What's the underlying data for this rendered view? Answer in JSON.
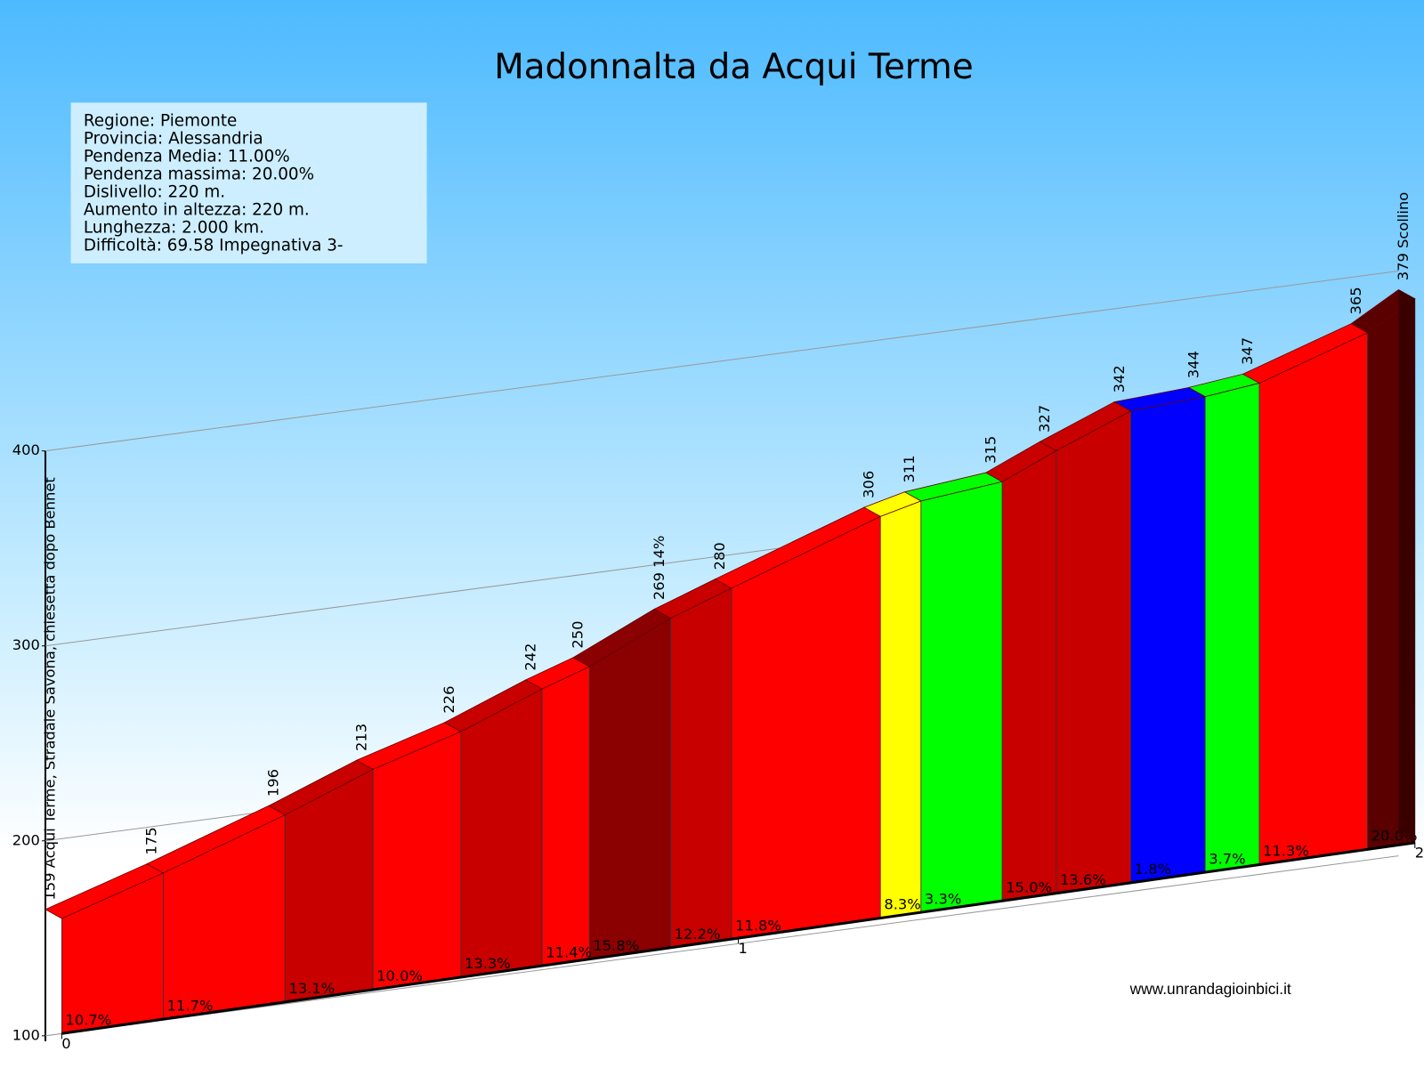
{
  "chart_data": {
    "type": "profile",
    "title": "Madonnalta da Acqui Terme",
    "info": [
      "Regione: Piemonte",
      "Provincia: Alessandria",
      "Pendenza Media: 11.00%",
      "Pendenza massima: 20.00%",
      "Dislivello:   220 m.",
      "Aumento in altezza:   220 m.",
      "Lunghezza:  2.000 km.",
      "Difficoltà: 69.58 Impegnativa 3-"
    ],
    "source": "www.unrandagioinbici.it",
    "x": [
      0,
      0.15,
      0.33,
      0.46,
      0.59,
      0.71,
      0.78,
      0.9,
      0.99,
      1.21,
      1.27,
      1.39,
      1.47,
      1.58,
      1.69,
      1.77,
      1.93,
      2.0
    ],
    "altitude": {
      "values": [
        159,
        175,
        196,
        213,
        226,
        242,
        250,
        269,
        280,
        306,
        311,
        315,
        327,
        342,
        344,
        347,
        365,
        379
      ],
      "value_labels": [
        "159 Acqui Terme, Stradale Savona, chiesetta dopo Bennet",
        "175",
        "196",
        "213",
        "226",
        "242",
        "250",
        "269 14%",
        "280",
        "306",
        "311",
        "315",
        "327",
        "342",
        "344",
        "347",
        "365",
        "379 Scollino"
      ]
    },
    "gradient": {
      "values": [
        10.7,
        11.7,
        13.1,
        10.0,
        13.3,
        11.4,
        15.8,
        12.2,
        11.8,
        8.3,
        3.3,
        15.0,
        13.6,
        1.8,
        3.7,
        11.3,
        20.0
      ],
      "value_labels": [
        "10.7%",
        "11.7%",
        "13.1%",
        "10.0%",
        "13.3%",
        "11.4%",
        "15.8%",
        "12.2%",
        "11.8%",
        "8.3%",
        "3.3%",
        "15.0%",
        "13.6%",
        "1.8%",
        "3.7%",
        "11.3%",
        "20.0%"
      ],
      "colors": [
        "#ff0000",
        "#ff0000",
        "#c80000",
        "#ff0000",
        "#c80000",
        "#ff0000",
        "#8b0000",
        "#c80000",
        "#ff0000",
        "#ffff00",
        "#00ff00",
        "#c80000",
        "#c80000",
        "#0000ff",
        "#00ff00",
        "#ff0000",
        "#5a0000"
      ]
    },
    "xlim": [
      0,
      2
    ],
    "xticks": [
      0,
      1,
      2
    ],
    "ylim": [
      100,
      400
    ],
    "yticks": [
      100,
      200,
      300,
      400
    ],
    "grid": true
  }
}
